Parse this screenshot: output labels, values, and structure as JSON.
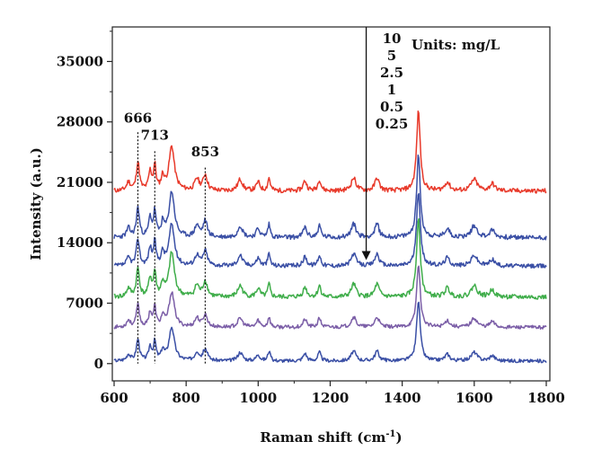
{
  "chart_data": {
    "type": "line",
    "xlabel": "Raman shift (cm",
    "xlabel_sup": "-1",
    "xlabel_end": ")",
    "ylabel": "Intensity (a.u.)",
    "xlim": [
      595,
      1810
    ],
    "ylim": [
      -2000,
      39000
    ],
    "x_ticks": [
      600,
      800,
      1000,
      1200,
      1400,
      1600,
      1800
    ],
    "x_tick_labels": [
      "600",
      "800",
      "1000",
      "1200",
      "1400",
      "1600",
      "1800"
    ],
    "y_ticks": [
      0,
      7000,
      14000,
      21000,
      28000,
      35000
    ],
    "y_tick_labels": [
      "0",
      "7000",
      "14000",
      "21000",
      "28000",
      "35000"
    ],
    "grid": false,
    "units_label": "Units: mg/L",
    "concentration_labels": [
      "10",
      "5",
      "2.5",
      "1",
      "0.5",
      "0.25"
    ],
    "peak_annotations": [
      {
        "label": "666",
        "x": 666,
        "y": 27500
      },
      {
        "label": "713",
        "x": 713,
        "y": 25500
      },
      {
        "label": "853",
        "x": 853,
        "y": 23600
      }
    ],
    "arrow": {
      "x": 1300,
      "y_top": 39000,
      "y_bottom": 12000
    },
    "peaks": [
      {
        "x": 640,
        "a": 0.3,
        "w": 6
      },
      {
        "x": 666,
        "a": 1.0,
        "w": 5
      },
      {
        "x": 700,
        "a": 0.65,
        "w": 5
      },
      {
        "x": 713,
        "a": 0.85,
        "w": 4
      },
      {
        "x": 735,
        "a": 0.45,
        "w": 5
      },
      {
        "x": 760,
        "a": 1.55,
        "w": 9
      },
      {
        "x": 830,
        "a": 0.4,
        "w": 7
      },
      {
        "x": 853,
        "a": 0.55,
        "w": 7
      },
      {
        "x": 950,
        "a": 0.4,
        "w": 8
      },
      {
        "x": 1000,
        "a": 0.3,
        "w": 6
      },
      {
        "x": 1030,
        "a": 0.45,
        "w": 4
      },
      {
        "x": 1130,
        "a": 0.35,
        "w": 6
      },
      {
        "x": 1170,
        "a": 0.4,
        "w": 5
      },
      {
        "x": 1265,
        "a": 0.45,
        "w": 8
      },
      {
        "x": 1330,
        "a": 0.45,
        "w": 7
      },
      {
        "x": 1445,
        "a": 2.8,
        "w": 6
      },
      {
        "x": 1525,
        "a": 0.3,
        "w": 8
      },
      {
        "x": 1600,
        "a": 0.4,
        "w": 10
      },
      {
        "x": 1650,
        "a": 0.25,
        "w": 8
      }
    ],
    "series": [
      {
        "color": "#e8392a",
        "baseline": 20000,
        "scale": 3300,
        "seed": 11
      },
      {
        "color": "#3a4fa5",
        "baseline": 14600,
        "scale": 3400,
        "seed": 23
      },
      {
        "color": "#3a4fa5",
        "baseline": 11300,
        "scale": 3100,
        "seed": 37
      },
      {
        "color": "#3fad4a",
        "baseline": 7700,
        "scale": 3300,
        "seed": 41
      },
      {
        "color": "#7b5ea7",
        "baseline": 4200,
        "scale": 2600,
        "seed": 53
      },
      {
        "color": "#3a4fa5",
        "baseline": 300,
        "scale": 2500,
        "seed": 67
      }
    ],
    "dotted_lines": [
      {
        "x": 666,
        "y_top": 26800,
        "y_bottom": 0
      },
      {
        "x": 713,
        "y_top": 24600,
        "y_bottom": 0
      },
      {
        "x": 853,
        "y_top": 22700,
        "y_bottom": 0
      }
    ]
  }
}
